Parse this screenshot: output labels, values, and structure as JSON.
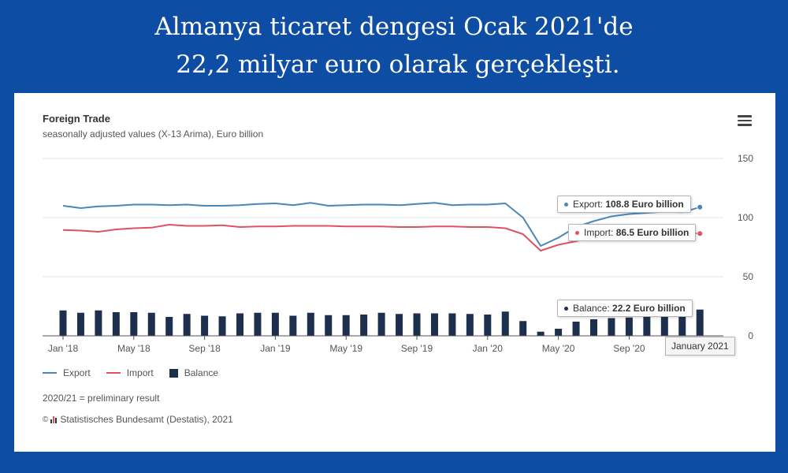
{
  "headline": {
    "line1": "Almanya ticaret dengesi Ocak 2021'de",
    "line2": " 22,2 milyar euro olarak gerçekleşti."
  },
  "chart": {
    "title": "Foreign Trade",
    "subtitle": "seasonally adjusted values (X-13 Arima), Euro billion",
    "legend": {
      "export": "Export",
      "import": "Import",
      "balance": "Balance"
    },
    "note": "2020/21 = preliminary result",
    "credits_symbol": "©",
    "credits": "Statistisches Bundesamt (Destatis), 2021",
    "tooltips": {
      "export_label": "Export: ",
      "export_value": "108.8 Euro billion",
      "import_label": "Import: ",
      "import_value": "86.5 Euro billion",
      "balance_label": "Balance: ",
      "balance_value": "22.2 Euro billion",
      "x_label": "January 2021"
    }
  },
  "colors": {
    "export": "#4a86b8",
    "import": "#e05262",
    "balance": "#1c2f4d",
    "grid": "#e6e6e6"
  },
  "chart_data": {
    "type": "bar+line",
    "title": "Foreign Trade",
    "subtitle": "seasonally adjusted values (X-13 Arima), Euro billion",
    "xlabel": "",
    "ylabel": "",
    "ylim": [
      0,
      150
    ],
    "yticks": [
      "0",
      "50",
      "100",
      "150"
    ],
    "grid": true,
    "y_axis_side": "right",
    "legend_position": "bottom-left",
    "categories": [
      "Jan 2018",
      "Feb 2018",
      "Mar 2018",
      "Apr 2018",
      "May 2018",
      "Jun 2018",
      "Jul 2018",
      "Aug 2018",
      "Sep 2018",
      "Oct 2018",
      "Nov 2018",
      "Dec 2018",
      "Jan 2019",
      "Feb 2019",
      "Mar 2019",
      "Apr 2019",
      "May 2019",
      "Jun 2019",
      "Jul 2019",
      "Aug 2019",
      "Sep 2019",
      "Oct 2019",
      "Nov 2019",
      "Dec 2019",
      "Jan 2020",
      "Feb 2020",
      "Mar 2020",
      "Apr 2020",
      "May 2020",
      "Jun 2020",
      "Jul 2020",
      "Aug 2020",
      "Sep 2020",
      "Oct 2020",
      "Nov 2020",
      "Dec 2020",
      "Jan 2021"
    ],
    "tick_labels": [
      {
        "index": 0,
        "label": "Jan '18"
      },
      {
        "index": 4,
        "label": "May '18"
      },
      {
        "index": 8,
        "label": "Sep '18"
      },
      {
        "index": 12,
        "label": "Jan '19"
      },
      {
        "index": 16,
        "label": "May '19"
      },
      {
        "index": 20,
        "label": "Sep '19"
      },
      {
        "index": 24,
        "label": "Jan '20"
      },
      {
        "index": 28,
        "label": "May '20"
      },
      {
        "index": 32,
        "label": "Sep '20"
      }
    ],
    "series": [
      {
        "name": "Export",
        "type": "line",
        "values": [
          110,
          108,
          109.5,
          110,
          111,
          111,
          110.5,
          111,
          110,
          110,
          110.5,
          111.5,
          112,
          110.5,
          112.5,
          110,
          110.5,
          111,
          111,
          110.5,
          111.5,
          112.5,
          110.5,
          111,
          111,
          112,
          100,
          76,
          83,
          92,
          97,
          101,
          103,
          104,
          105,
          104.5,
          108.8
        ]
      },
      {
        "name": "Import",
        "type": "line",
        "values": [
          89.5,
          89,
          88,
          90,
          91,
          91.5,
          94,
          93,
          93,
          93.5,
          92,
          92.5,
          92.5,
          93,
          93,
          93,
          92.5,
          92.5,
          92.5,
          92,
          92,
          92.5,
          92.5,
          92,
          92,
          91,
          86,
          72,
          77,
          80,
          84,
          85,
          86,
          86.5,
          87,
          87,
          86.5
        ]
      },
      {
        "name": "Balance",
        "type": "bar",
        "values": [
          21.5,
          19.5,
          21.5,
          20,
          20,
          19.5,
          16,
          18.5,
          17,
          16.5,
          19,
          19.5,
          19.5,
          17,
          19.5,
          17.5,
          17.5,
          18,
          19.5,
          18.5,
          19,
          19,
          19,
          18.5,
          18,
          20.5,
          12.5,
          3.5,
          6,
          12,
          14,
          15,
          15.5,
          16,
          16.5,
          16,
          22.2
        ]
      }
    ]
  }
}
